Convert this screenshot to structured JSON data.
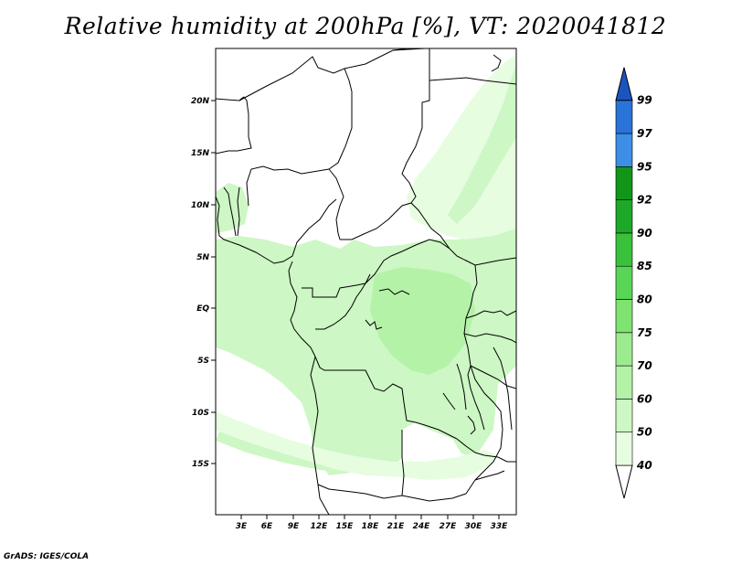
{
  "title": "Relative humidity at 200hPa [%], VT: 2020041812",
  "credit": "GrADS: IGES/COLA",
  "map": {
    "lat_ticks": [
      "20N",
      "15N",
      "10N",
      "5N",
      "EQ",
      "5S",
      "10S",
      "15S"
    ],
    "lon_ticks": [
      "3E",
      "6E",
      "9E",
      "12E",
      "15E",
      "18E",
      "21E",
      "24E",
      "27E",
      "30E",
      "33E"
    ]
  },
  "colorbar": {
    "levels": [
      "40",
      "50",
      "60",
      "70",
      "75",
      "80",
      "85",
      "90",
      "92",
      "95",
      "97",
      "99"
    ],
    "colors": [
      "#ffffff",
      "#e6fde0",
      "#cdf7c4",
      "#b4f2a8",
      "#9ceb8e",
      "#7fe371",
      "#5ad657",
      "#3ac13b",
      "#1ea82a",
      "#129619",
      "#3d8fe6",
      "#2a73d8",
      "#1a55bf"
    ]
  }
}
